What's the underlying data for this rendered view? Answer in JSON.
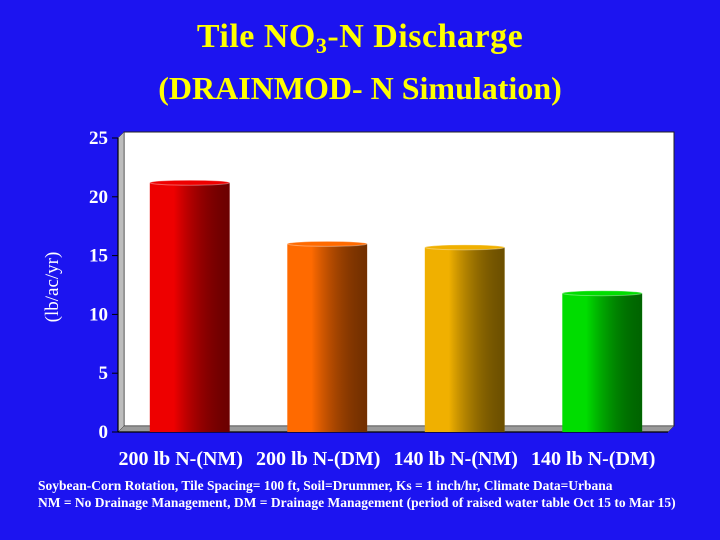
{
  "title": {
    "main_prefix": "Tile NO",
    "main_sub": "3",
    "main_suffix": "-N Discharge",
    "line2": "(DRAINMOD- N Simulation)"
  },
  "footnotes": {
    "line1": "Soybean-Corn Rotation, Tile Spacing= 100 ft, Soil=Drummer, Ks = 1 inch/hr, Climate Data=Urbana",
    "line2": "NM = No Drainage Management, DM = Drainage Management (period of raised water table Oct 15 to Mar 15)"
  },
  "chart_data": {
    "type": "bar",
    "title": "Tile NO3-N Discharge (DRAINMOD- N Simulation)",
    "xlabel": "",
    "ylabel": "(lb/ac/yr)",
    "ylim": [
      0,
      25
    ],
    "yticks": [
      0,
      5,
      10,
      15,
      20,
      25
    ],
    "grid": false,
    "categories": [
      "200 lb N-(NM)",
      "200 lb N-(DM)",
      "140 lb N-(NM)",
      "140 lb N-(DM)"
    ],
    "values": [
      21.2,
      16.0,
      15.7,
      11.8
    ],
    "bar_colors": [
      "#ee0000",
      "#ff6a00",
      "#f0b000",
      "#00dd00"
    ],
    "plot_background": "#ffffff"
  }
}
